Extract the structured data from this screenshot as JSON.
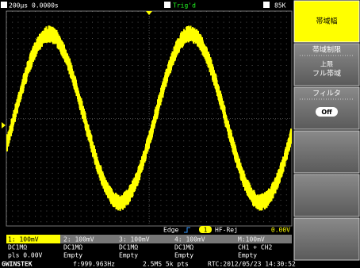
{
  "top_bar": {
    "timebase": "200µs",
    "position": "0.0000s",
    "trigger_status": "Trig'd",
    "memory": "85K"
  },
  "menu": {
    "items": [
      {
        "label": "帯域幅"
      },
      {
        "label": "帯域制限",
        "sub": "上限",
        "value": "フル帯域"
      },
      {
        "label": "フィルタ",
        "value": "Off"
      }
    ]
  },
  "trigger": {
    "type": "Edge",
    "source": "1",
    "coupling": "HF-Rej",
    "level": "0.00V"
  },
  "channels": {
    "rows": [
      [
        "1: 100mV",
        "2: 100mV",
        "3: 100mV",
        "4: 100mV",
        "M:100mV"
      ],
      [
        "DC1MΩ",
        "DC1MΩ",
        "DC1MΩ",
        "DC1MΩ",
        "CH1 + CH2"
      ],
      [
        "pls 0.00V",
        "Empty",
        "Empty",
        "Empty",
        "Empty"
      ]
    ]
  },
  "status": {
    "brand": "GWINSTEK",
    "frequency": "f:999.963Hz",
    "sampling": "2.5MS 5k pts",
    "clock": "RTC:2012/05/23 14:30:52"
  }
}
